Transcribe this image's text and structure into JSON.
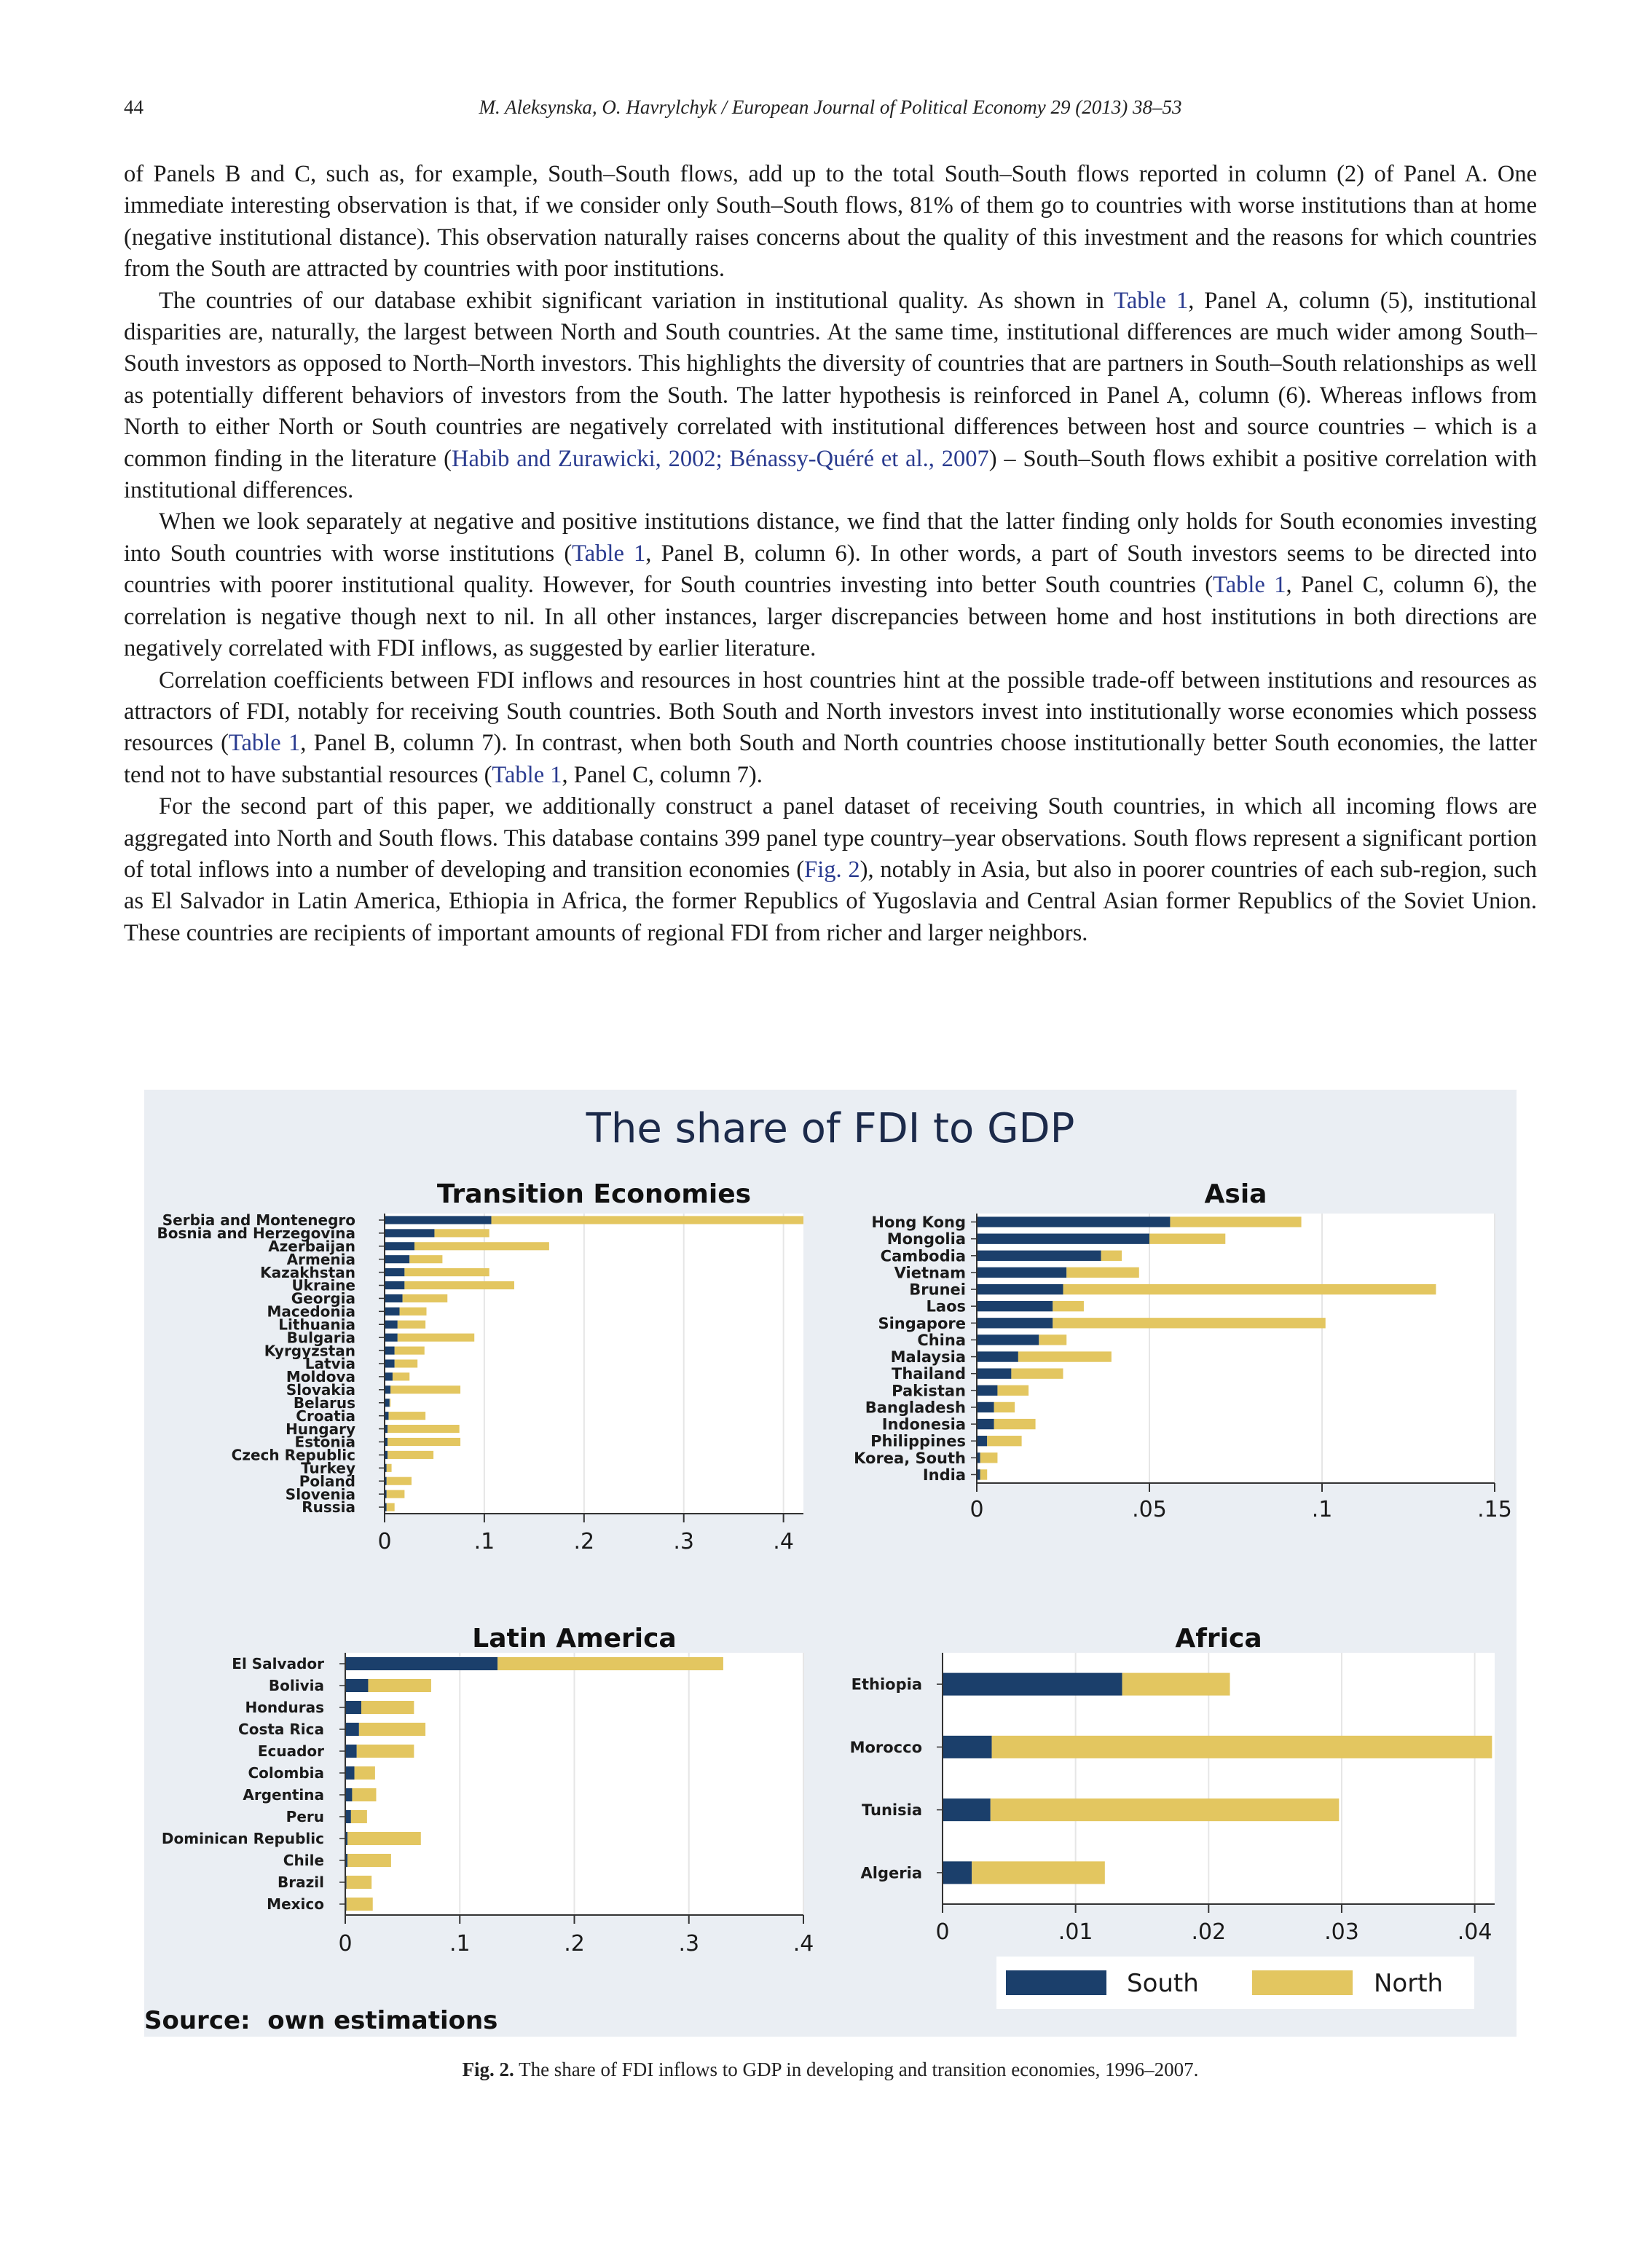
{
  "header": {
    "page_number": "44",
    "journal": "M. Aleksynska, O. Havrylchyk / European Journal of Political Economy 29 (2013) 38–53"
  },
  "paragraphs": {
    "p1": "of Panels B and C, such as, for example, South–South flows, add up to the total South–South flows reported in column (2) of Panel A. One immediate interesting observation is that, if we consider only South–South flows, 81% of them go to countries with worse institutions than at home (negative institutional distance). This observation naturally raises concerns about the quality of this investment and the reasons for which countries from the South are attracted by countries with poor institutions.",
    "p2": {
      "a": "The countries of our database exhibit significant variation in institutional quality. As shown in ",
      "link1": "Table 1",
      "b": ", Panel A, column (5), institutional disparities are, naturally, the largest between North and South countries. At the same time, institutional differences are much wider among South–South investors as opposed to North–North investors. This highlights the diversity of countries that are partners in South–South relationships as well as potentially different behaviors of investors from the South. The latter hypothesis is reinforced in Panel A, column (6). Whereas inflows from North to either North or South countries are negatively correlated with institutional differences between host and source countries – which is a common finding in the literature (",
      "link2": "Habib and Zurawicki, 2002; Bénassy-Quéré et al., 2007",
      "c": ") – South–South flows exhibit a positive correlation with institutional differences."
    },
    "p3": {
      "a": "When we look separately at negative and positive institutions distance, we find that the latter finding only holds for South economies investing into South countries with worse institutions (",
      "link1": "Table 1",
      "b": ", Panel B, column 6). In other words, a part of South investors seems to be directed into countries with poorer institutional quality. However, for South countries investing into better South countries (",
      "link2": "Table 1",
      "c": ", Panel C, column 6), the correlation is negative though next to nil. In all other instances, larger discrepancies between home and host institutions in both directions are negatively correlated with FDI inflows, as suggested by earlier literature."
    },
    "p4": {
      "a": "Correlation coefficients between FDI inflows and resources in host countries hint at the possible trade-off between institutions and resources as attractors of FDI, notably for receiving South countries. Both South and North investors invest into institutionally worse economies which possess resources (",
      "link1": "Table 1",
      "b": ", Panel B, column 7). In contrast, when both South and North countries choose institutionally better South economies, the latter tend not to have substantial resources (",
      "link2": "Table 1",
      "c": ", Panel C, column 7)."
    },
    "p5": {
      "a": "For the second part of this paper, we additionally construct a panel dataset of receiving South countries, in which all incoming flows are aggregated into North and South flows. This database contains 399 panel type country–year observations. South flows represent a significant portion of total inflows into a number of developing and transition economies (",
      "link1": "Fig. 2",
      "b": "), notably in Asia, but also in poorer countries of each sub-region, such as El Salvador in Latin America, Ethiopia in Africa, the former Republics of Yugoslavia and Central Asian former Republics of the Soviet Union. These countries are recipients of important amounts of regional FDI from richer and larger neighbors."
    }
  },
  "figure": {
    "title": "The share of FDI to GDP",
    "source": "Source:  own estimations",
    "legend": {
      "south": "South",
      "north": "North"
    },
    "colors": {
      "south": "#1b3f6b",
      "north": "#e3c660",
      "background": "#eaeef3",
      "plot": "#ffffff",
      "grid": "#e6e6e6"
    }
  },
  "caption": {
    "label": "Fig. 2.",
    "text": " The share of FDI inflows to GDP in developing and transition economies, 1996–2007."
  },
  "chart_data": [
    {
      "type": "bar",
      "orientation": "horizontal",
      "stacked": true,
      "title": "Transition Economies",
      "categories": [
        "Serbia and Montenegro",
        "Bosnia and Herzegovina",
        "Azerbaijan",
        "Armenia",
        "Kazakhstan",
        "Ukraine",
        "Georgia",
        "Macedonia",
        "Lithuania",
        "Bulgaria",
        "Kyrgyzstan",
        "Latvia",
        "Moldova",
        "Slovakia",
        "Belarus",
        "Croatia",
        "Hungary",
        "Estonia",
        "Czech Republic",
        "Turkey",
        "Poland",
        "Slovenia",
        "Russia"
      ],
      "series": [
        {
          "name": "South",
          "values": [
            0.107,
            0.05,
            0.03,
            0.025,
            0.02,
            0.02,
            0.018,
            0.015,
            0.013,
            0.013,
            0.01,
            0.01,
            0.008,
            0.006,
            0.005,
            0.004,
            0.003,
            0.003,
            0.003,
            0.002,
            0.002,
            0.002,
            0.002
          ]
        },
        {
          "name": "North",
          "values": [
            0.313,
            0.055,
            0.135,
            0.033,
            0.085,
            0.11,
            0.045,
            0.027,
            0.028,
            0.077,
            0.03,
            0.023,
            0.017,
            0.07,
            0.001,
            0.037,
            0.072,
            0.073,
            0.046,
            0.005,
            0.025,
            0.018,
            0.008
          ]
        }
      ],
      "xlim": [
        0,
        0.42
      ],
      "xticks": [
        "0",
        ".1",
        ".2",
        ".3",
        ".4"
      ],
      "xtick_values": [
        0,
        0.1,
        0.2,
        0.3,
        0.4
      ]
    },
    {
      "type": "bar",
      "orientation": "horizontal",
      "stacked": true,
      "title": "Asia",
      "categories": [
        "Hong Kong",
        "Mongolia",
        "Cambodia",
        "Vietnam",
        "Brunei",
        "Laos",
        "Singapore",
        "China",
        "Malaysia",
        "Thailand",
        "Pakistan",
        "Bangladesh",
        "Indonesia",
        "Philippines",
        "Korea, South",
        "India"
      ],
      "series": [
        {
          "name": "South",
          "values": [
            0.056,
            0.05,
            0.036,
            0.026,
            0.025,
            0.022,
            0.022,
            0.018,
            0.012,
            0.01,
            0.006,
            0.005,
            0.005,
            0.003,
            0.001,
            0.001
          ]
        },
        {
          "name": "North",
          "values": [
            0.038,
            0.022,
            0.006,
            0.021,
            0.108,
            0.009,
            0.079,
            0.008,
            0.027,
            0.015,
            0.009,
            0.006,
            0.012,
            0.01,
            0.005,
            0.002
          ]
        }
      ],
      "xlim": [
        0,
        0.15
      ],
      "xticks": [
        "0",
        ".05",
        ".1",
        ".15"
      ],
      "xtick_values": [
        0,
        0.05,
        0.1,
        0.15
      ]
    },
    {
      "type": "bar",
      "orientation": "horizontal",
      "stacked": true,
      "title": "Latin America",
      "categories": [
        "El Salvador",
        "Bolivia",
        "Honduras",
        "Costa Rica",
        "Ecuador",
        "Colombia",
        "Argentina",
        "Peru",
        "Dominican Republic",
        "Chile",
        "Brazil",
        "Mexico"
      ],
      "series": [
        {
          "name": "South",
          "values": [
            0.133,
            0.02,
            0.014,
            0.012,
            0.01,
            0.008,
            0.006,
            0.005,
            0.002,
            0.002,
            0.001,
            0.001
          ]
        },
        {
          "name": "North",
          "values": [
            0.197,
            0.055,
            0.046,
            0.058,
            0.05,
            0.018,
            0.021,
            0.014,
            0.064,
            0.038,
            0.022,
            0.023
          ]
        }
      ],
      "xlim": [
        0,
        0.4
      ],
      "xticks": [
        "0",
        ".1",
        ".2",
        ".3",
        ".4"
      ],
      "xtick_values": [
        0,
        0.1,
        0.2,
        0.3,
        0.4
      ]
    },
    {
      "type": "bar",
      "orientation": "horizontal",
      "stacked": true,
      "title": "Africa",
      "categories": [
        "Ethiopia",
        "Morocco",
        "Tunisia",
        "Algeria"
      ],
      "series": [
        {
          "name": "South",
          "values": [
            0.0135,
            0.0037,
            0.0036,
            0.0022
          ]
        },
        {
          "name": "North",
          "values": [
            0.0081,
            0.0376,
            0.0262,
            0.01
          ]
        }
      ],
      "xlim": [
        0,
        0.0415
      ],
      "xticks": [
        "0",
        ".01",
        ".02",
        ".03",
        ".04"
      ],
      "xtick_values": [
        0,
        0.01,
        0.02,
        0.03,
        0.04
      ]
    }
  ]
}
